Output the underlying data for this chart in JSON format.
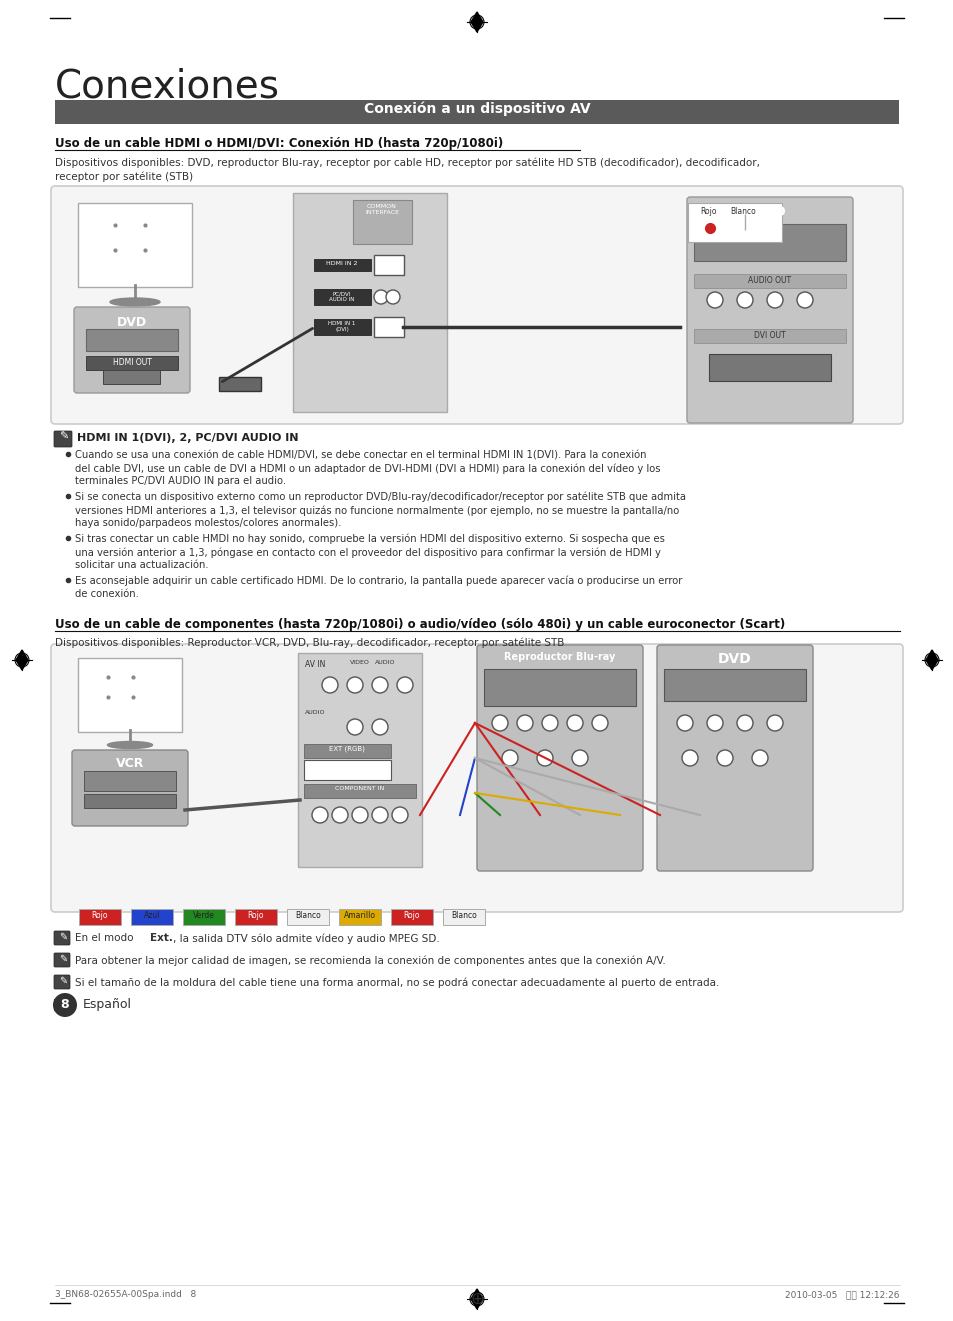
{
  "title": "Conexiones",
  "section_header": "Conexión a un dispositivo AV",
  "section_header_bg": "#5a5a5a",
  "section_header_color": "#ffffff",
  "subsection1_title": "Uso de un cable HDMI o HDMI/DVI: Conexión HD (hasta 720p/1080i)",
  "subsection1_desc": "Dispositivos disponibles: DVD, reproductor Blu-ray, receptor por cable HD, receptor por satélite HD STB (decodificador), decodificador,\nreceptor por satélite (STB)",
  "note_icon": "⚓",
  "hdmi_note_title": "HDMI IN 1(DVI), 2, PC/DVI AUDIO IN",
  "hdmi_bullets": [
    "Cuando se usa una conexión de cable HDMI/DVI, se debe conectar en el terminal HDMI IN 1(DVI). Para la conexión\ndel cable DVI, use un cable de DVI a HDMI o un adaptador de DVI-HDMI (DVI a HDMI) para la conexión del vídeo y los\nterminales PC/DVI AUDIO IN para el audio.",
    "Si se conecta un dispositivo externo como un reproductor DVD/Blu-ray/decodificador/receptor por satélite STB que admita\nversiones HDMI anteriores a 1,3, el televisor quizás no funcione normalmente (por ejemplo, no se muestre la pantalla/no\nhaya sonido/parpadeos molestos/colores anormales).",
    "Si tras conectar un cable HMDI no hay sonido, compruebe la versión HDMI del dispositivo externo. Si sospecha que es\nuna versión anterior a 1,3, póngase en contacto con el proveedor del dispositivo para confirmar la versión de HDMI y\nsolicitar una actualización.",
    "Es aconsejable adquirir un cable certificado HDMI. De lo contrario, la pantalla puede aparecer vacía o producirse un error\nde conexión."
  ],
  "subsection2_title": "Uso de un cable de componentes (hasta 720p/1080i) o audio/vídeo (sólo 480i) y un cable euroconector (Scart)",
  "subsection2_desc": "Dispositivos disponibles: Reproductor VCR, DVD, Blu-ray, decodificador, receptor por satélite STB",
  "bottom_notes": [
    "En el modo Ext., la salida DTV sólo admite vídeo y audio MPEG SD.",
    "Para obtener la mejor calidad de imagen, se recomienda la conexión de componentes antes que la conexión A/V.",
    "Si el tamaño de la moldura del cable tiene una forma anormal, no se podrá conectar adecuadamente al puerto de entrada."
  ],
  "page_label": "8",
  "page_lang": "Español",
  "footer_left": "3_BN68-02655A-00Spa.indd   8",
  "footer_right": "2010-03-05   오전 12:12:26",
  "bg_color": "#ffffff",
  "text_color": "#000000",
  "diagram1_bg": "#e8e8e8",
  "diagram2_bg": "#e8e8e8",
  "box_border": "#aaaaaa",
  "dark_box": "#6e6e6e",
  "medium_box": "#a0a0a0"
}
